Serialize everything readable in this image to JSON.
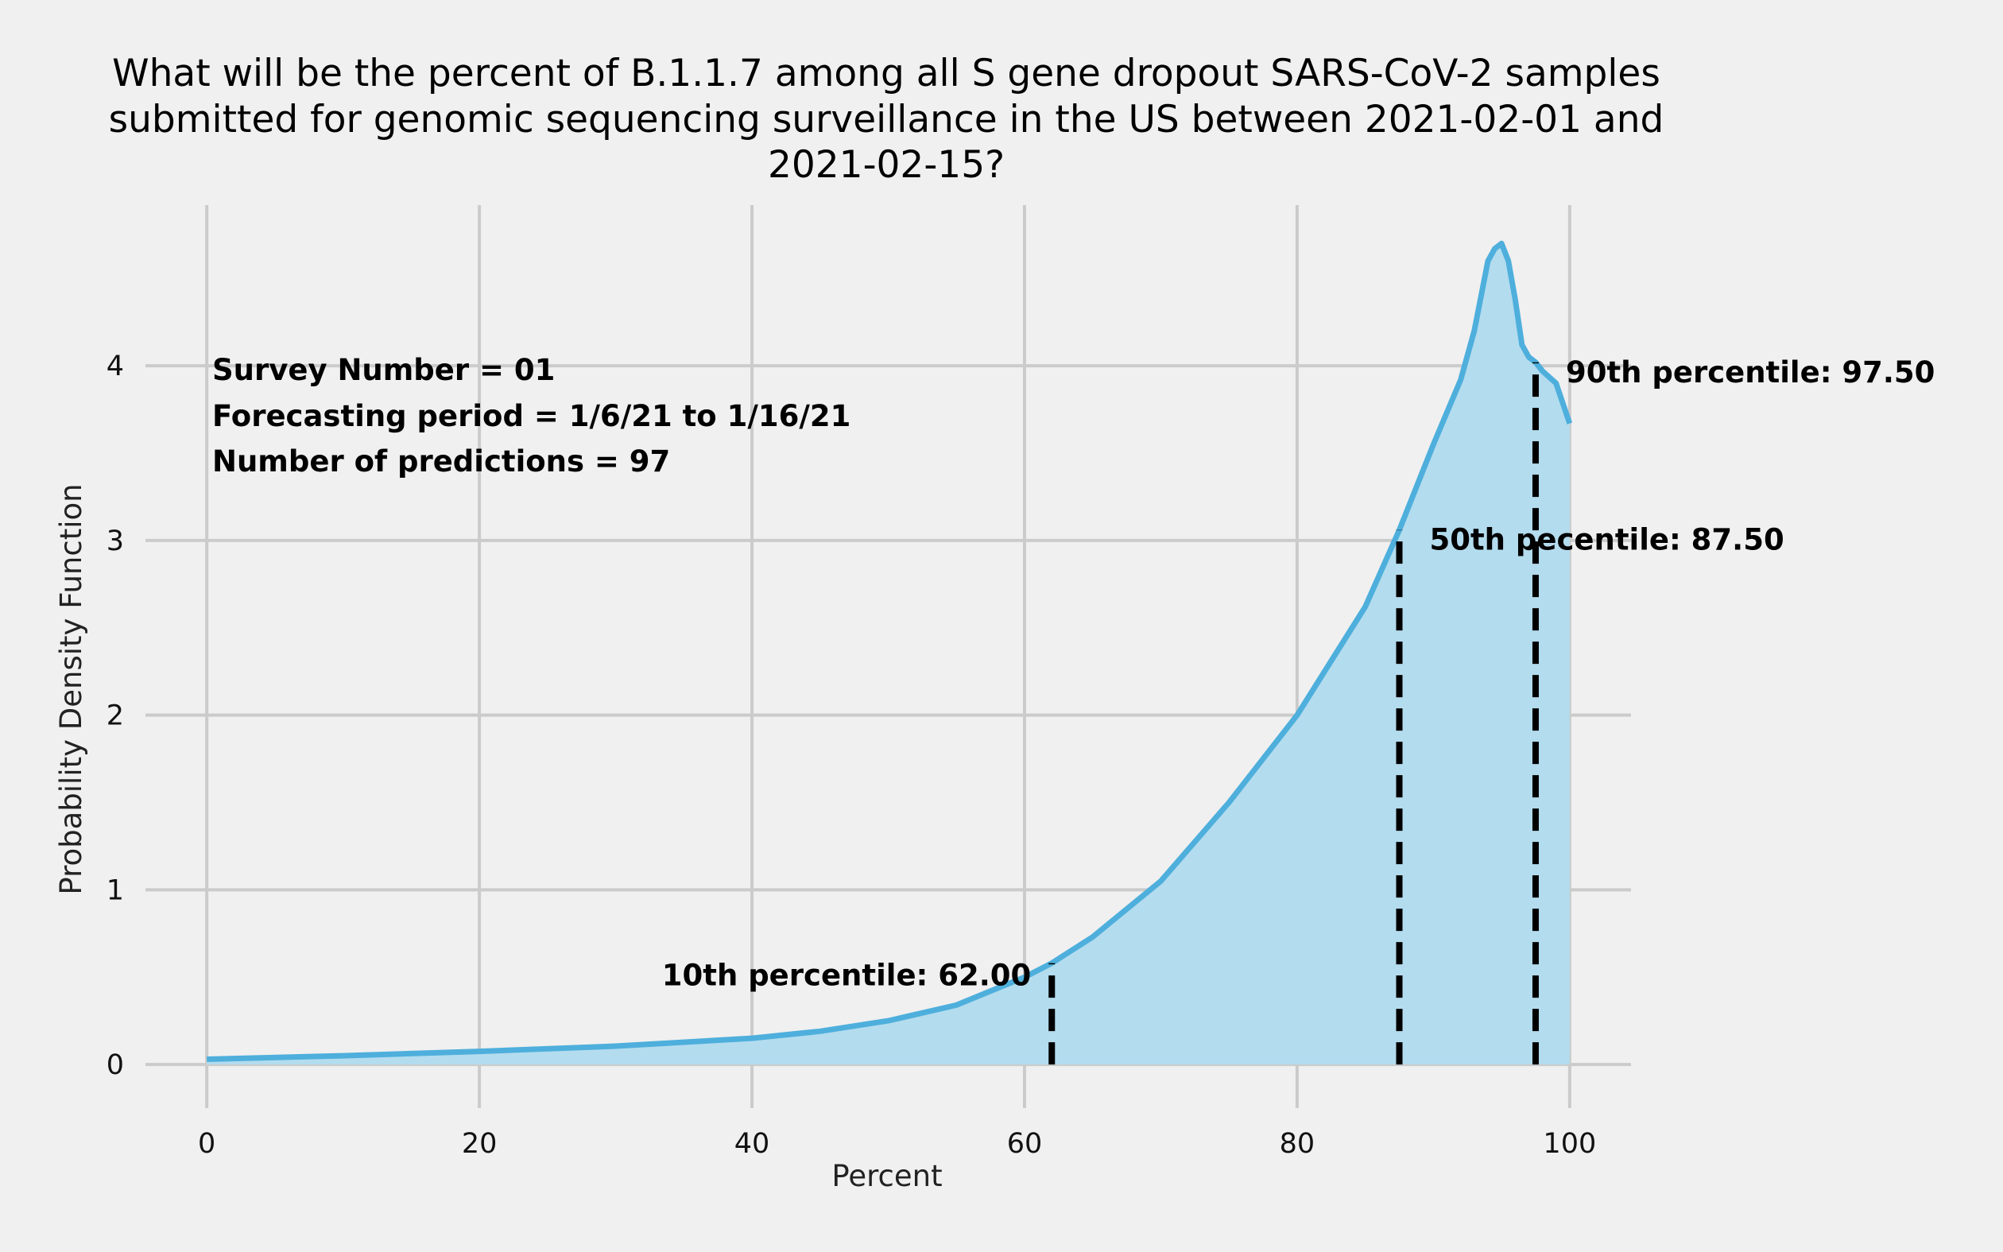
{
  "chart_data": {
    "type": "area",
    "title": [
      "What will be the percent of B.1.1.7 among all S gene dropout SARS-CoV-2 samples",
      "submitted for genomic sequencing surveillance in the US between 2021-02-01 and",
      "2021-02-15?"
    ],
    "xlabel": "Percent",
    "ylabel": "Probability Density Function",
    "xlim": [
      -4.5,
      104.5
    ],
    "ylim": [
      -0.25,
      4.92
    ],
    "x_ticks": [
      0,
      20,
      40,
      60,
      80,
      100
    ],
    "y_ticks": [
      0,
      1,
      2,
      3,
      4
    ],
    "grid": true,
    "line_color": "#4eafdc",
    "fill_color": "#b3dcee",
    "x": [
      0,
      10,
      20,
      30,
      40,
      45,
      50,
      55,
      60,
      62,
      65,
      70,
      75,
      80,
      85,
      87.5,
      90,
      92,
      93,
      94,
      94.5,
      95,
      95.5,
      96,
      96.5,
      97,
      97.5,
      98,
      99,
      100
    ],
    "y": [
      0.03,
      0.05,
      0.075,
      0.105,
      0.15,
      0.19,
      0.25,
      0.34,
      0.5,
      0.58,
      0.73,
      1.05,
      1.5,
      2.0,
      2.62,
      3.06,
      3.55,
      3.92,
      4.2,
      4.6,
      4.67,
      4.7,
      4.6,
      4.38,
      4.12,
      4.05,
      4.02,
      3.97,
      3.9,
      3.67
    ],
    "percentiles": [
      {
        "label": "10th percentile: 62.00",
        "x": 62.0
      },
      {
        "label": "50th pecentile: 87.50",
        "x": 87.5
      },
      {
        "label": "90th percentile: 97.50",
        "x": 97.5
      }
    ],
    "annotations": [
      "Survey Number = 01",
      "Forecasting period = 1/6/21 to 1/16/21",
      "Number of predictions = 97"
    ]
  }
}
